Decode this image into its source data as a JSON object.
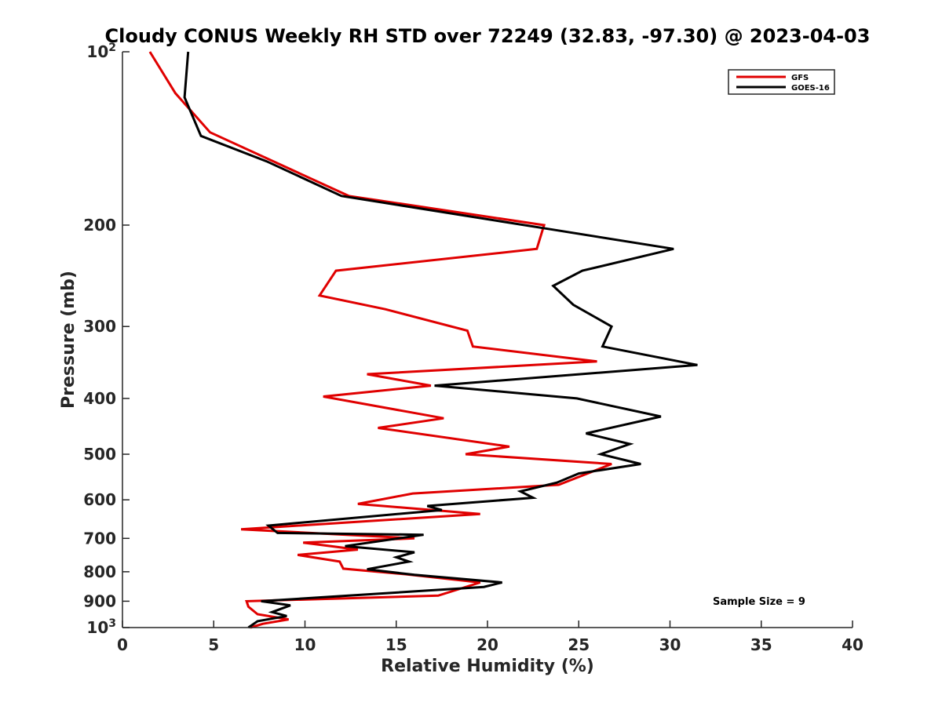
{
  "chart_data": {
    "type": "line",
    "title": "Cloudy CONUS Weekly RH STD over 72249 (32.83, -97.30) @ 2023-04-03",
    "xlabel": "Relative Humidity (%)",
    "ylabel": "Pressure (mb)",
    "xlim": [
      0,
      40
    ],
    "ylim": [
      100,
      1000
    ],
    "y_scale": "log",
    "y_reversed": true,
    "grid": false,
    "legend_position": "top-right",
    "x_ticks": [
      0,
      5,
      10,
      15,
      20,
      25,
      30,
      35,
      40
    ],
    "x_tick_labels": [
      "0",
      "5",
      "10",
      "15",
      "20",
      "25",
      "30",
      "35",
      "40"
    ],
    "y_ticks": [
      100,
      200,
      300,
      400,
      500,
      600,
      700,
      800,
      900,
      1000
    ],
    "y_tick_labels": [
      "10^2",
      "200",
      "300",
      "400",
      "500",
      "600",
      "700",
      "800",
      "900",
      "10^3"
    ],
    "annotation": "Sample Size = 9",
    "series": [
      {
        "name": "GFS",
        "color": "#e00000",
        "points": [
          [
            1.5,
            100
          ],
          [
            2.9,
            118
          ],
          [
            4.8,
            138
          ],
          [
            12.4,
            178
          ],
          [
            23.1,
            200
          ],
          [
            22.7,
            220
          ],
          [
            11.7,
            240
          ],
          [
            10.8,
            265
          ],
          [
            14.4,
            280
          ],
          [
            18.9,
            305
          ],
          [
            19.2,
            325
          ],
          [
            26.0,
            345
          ],
          [
            13.4,
            363
          ],
          [
            16.9,
            380
          ],
          [
            11.0,
            397
          ],
          [
            17.6,
            433
          ],
          [
            14.0,
            450
          ],
          [
            21.2,
            485
          ],
          [
            18.8,
            500
          ],
          [
            26.8,
            520
          ],
          [
            23.9,
            565
          ],
          [
            15.9,
            585
          ],
          [
            12.9,
            610
          ],
          [
            19.6,
            635
          ],
          [
            6.5,
            675
          ],
          [
            16.0,
            700
          ],
          [
            9.9,
            712
          ],
          [
            12.9,
            732
          ],
          [
            9.6,
            748
          ],
          [
            11.9,
            768
          ],
          [
            12.1,
            790
          ],
          [
            15.5,
            808
          ],
          [
            19.6,
            835
          ],
          [
            17.3,
            880
          ],
          [
            6.8,
            900
          ],
          [
            6.9,
            920
          ],
          [
            7.4,
            948
          ],
          [
            9.1,
            968
          ],
          [
            7.7,
            985
          ],
          [
            7.0,
            1000
          ]
        ]
      },
      {
        "name": "GOES-16",
        "color": "#000000",
        "points": [
          [
            3.6,
            100
          ],
          [
            3.4,
            120
          ],
          [
            4.3,
            140
          ],
          [
            7.9,
            155
          ],
          [
            12.0,
            178
          ],
          [
            23.3,
            203
          ],
          [
            30.2,
            220
          ],
          [
            25.2,
            240
          ],
          [
            23.6,
            255
          ],
          [
            24.7,
            275
          ],
          [
            26.8,
            300
          ],
          [
            26.3,
            325
          ],
          [
            31.5,
            350
          ],
          [
            17.1,
            380
          ],
          [
            24.9,
            400
          ],
          [
            29.5,
            430
          ],
          [
            25.4,
            460
          ],
          [
            27.8,
            480
          ],
          [
            26.2,
            500
          ],
          [
            28.4,
            520
          ],
          [
            25.0,
            540
          ],
          [
            23.8,
            560
          ],
          [
            21.8,
            580
          ],
          [
            22.5,
            595
          ],
          [
            16.7,
            615
          ],
          [
            17.5,
            625
          ],
          [
            8.0,
            665
          ],
          [
            8.5,
            685
          ],
          [
            16.5,
            690
          ],
          [
            12.2,
            722
          ],
          [
            16.0,
            740
          ],
          [
            15.0,
            755
          ],
          [
            15.7,
            768
          ],
          [
            13.4,
            792
          ],
          [
            16.0,
            810
          ],
          [
            20.8,
            835
          ],
          [
            19.8,
            850
          ],
          [
            7.6,
            900
          ],
          [
            9.2,
            915
          ],
          [
            8.2,
            940
          ],
          [
            9.0,
            955
          ],
          [
            7.4,
            975
          ],
          [
            6.9,
            1000
          ]
        ]
      }
    ]
  }
}
